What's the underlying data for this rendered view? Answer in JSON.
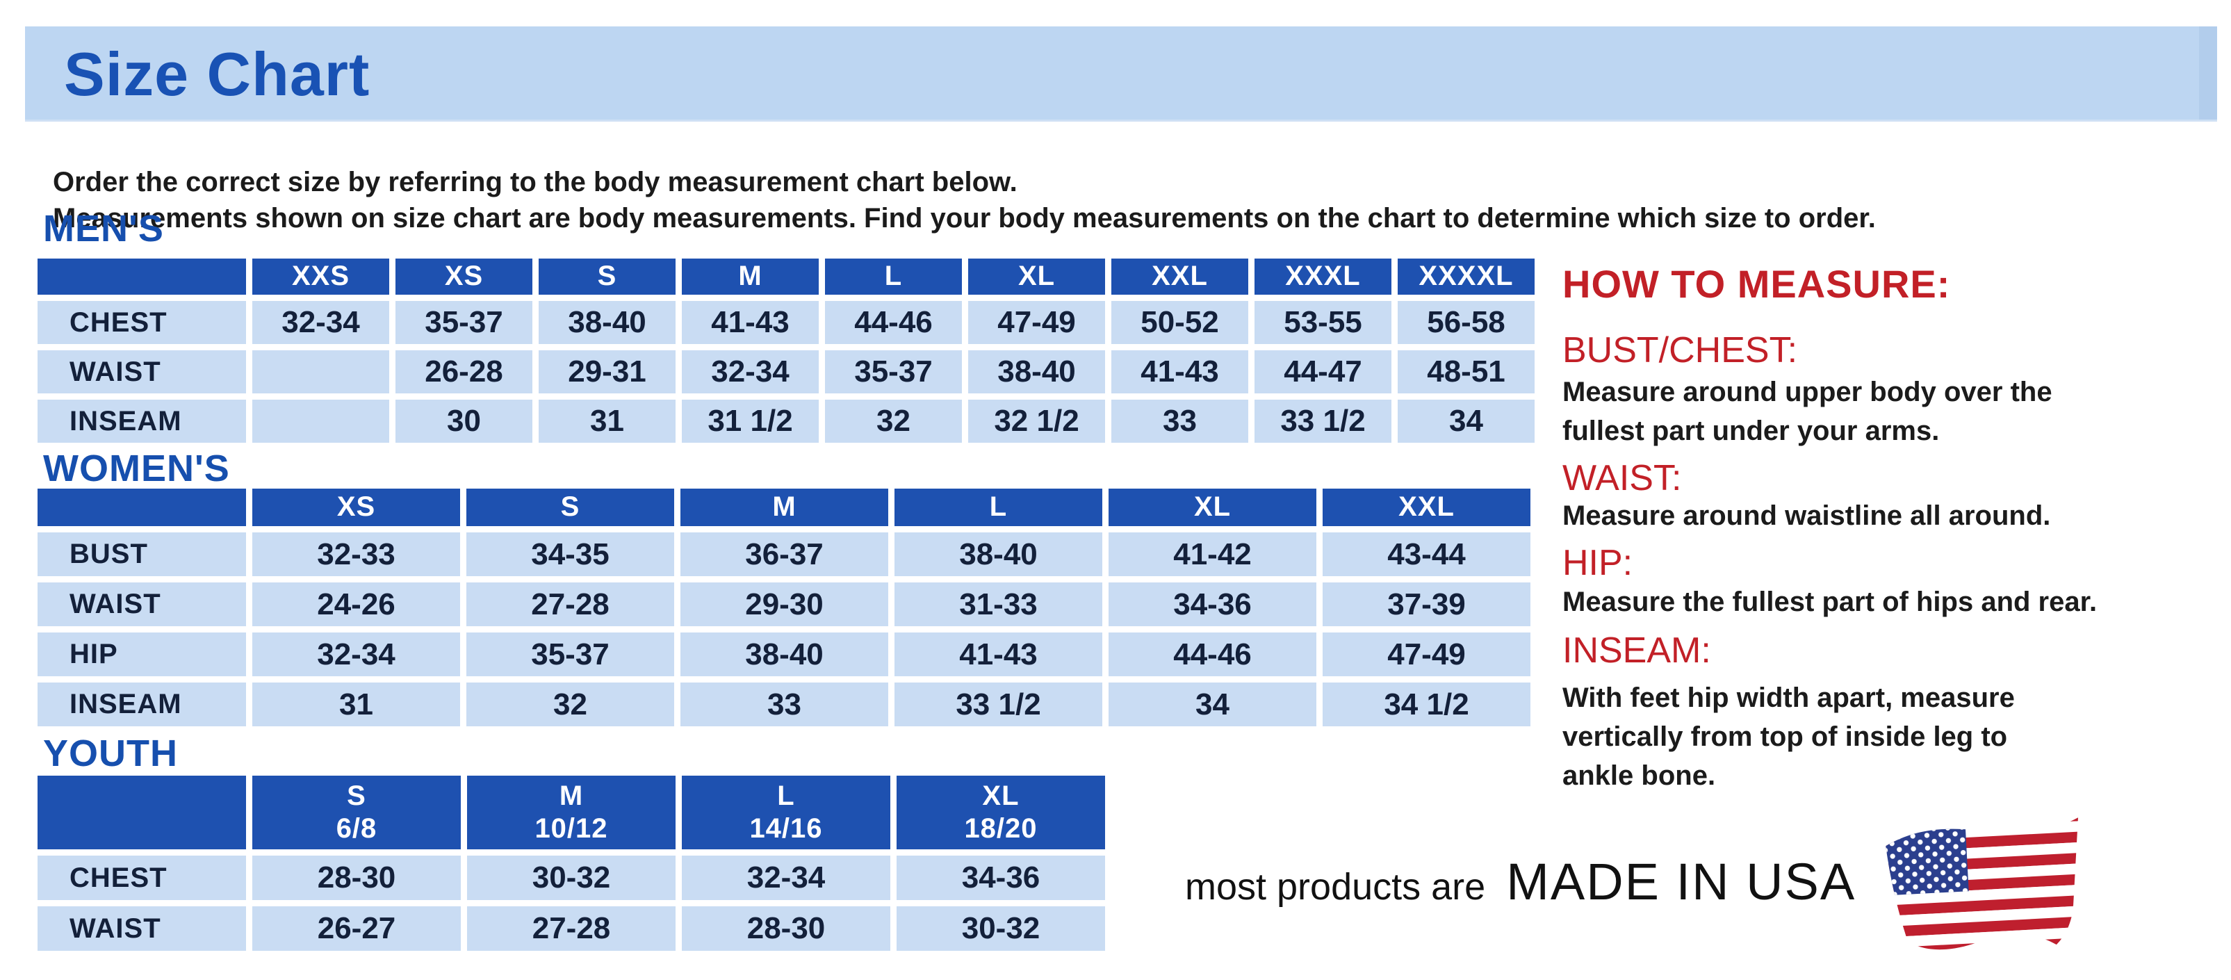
{
  "page": {
    "title": "Size Chart",
    "intro_line1": "Order the correct size by referring to the body measurement chart below.",
    "intro_line2": "Measurements shown on size chart are body measurements.  Find your body measurements on the chart to determine which size to order."
  },
  "tables": {
    "mens": {
      "heading": "MEN'S",
      "columns": [
        "XXS",
        "XS",
        "S",
        "M",
        "L",
        "XL",
        "XXL",
        "XXXL",
        "XXXXL"
      ],
      "rows": [
        {
          "label": "CHEST",
          "values": [
            "32-34",
            "35-37",
            "38-40",
            "41-43",
            "44-46",
            "47-49",
            "50-52",
            "53-55",
            "56-58"
          ]
        },
        {
          "label": "WAIST",
          "values": [
            "",
            "26-28",
            "29-31",
            "32-34",
            "35-37",
            "38-40",
            "41-43",
            "44-47",
            "48-51"
          ]
        },
        {
          "label": "INSEAM",
          "values": [
            "",
            "30",
            "31",
            "31 1/2",
            "32",
            "32 1/2",
            "33",
            "33 1/2",
            "34"
          ]
        }
      ]
    },
    "womens": {
      "heading": "WOMEN'S",
      "columns": [
        "XS",
        "S",
        "M",
        "L",
        "XL",
        "XXL"
      ],
      "rows": [
        {
          "label": "BUST",
          "values": [
            "32-33",
            "34-35",
            "36-37",
            "38-40",
            "41-42",
            "43-44"
          ]
        },
        {
          "label": "WAIST",
          "values": [
            "24-26",
            "27-28",
            "29-30",
            "31-33",
            "34-36",
            "37-39"
          ]
        },
        {
          "label": "HIP",
          "values": [
            "32-34",
            "35-37",
            "38-40",
            "41-43",
            "44-46",
            "47-49"
          ]
        },
        {
          "label": "INSEAM",
          "values": [
            "31",
            "32",
            "33",
            "33 1/2",
            "34",
            "34 1/2"
          ]
        }
      ]
    },
    "youth": {
      "heading": "YOUTH",
      "columns": [
        "S\n6/8",
        "M\n10/12",
        "L\n14/16",
        "XL\n18/20"
      ],
      "rows": [
        {
          "label": "CHEST",
          "values": [
            "28-30",
            "30-32",
            "32-34",
            "34-36"
          ]
        },
        {
          "label": "WAIST",
          "values": [
            "26-27",
            "27-28",
            "28-30",
            "30-32"
          ]
        }
      ]
    }
  },
  "how_to_measure": {
    "heading": "HOW TO MEASURE:",
    "sections": [
      {
        "label": "BUST/CHEST:",
        "text": "Measure around upper body over the\nfullest part under your arms."
      },
      {
        "label": "WAIST:",
        "text": "Measure around waistline all around."
      },
      {
        "label": "HIP:",
        "text": "Measure the fullest part of hips and rear."
      },
      {
        "label": "INSEAM:",
        "text": "With feet hip width apart, measure\nvertically from top of inside leg to\nankle bone."
      }
    ]
  },
  "footer": {
    "prefix": "most products are",
    "made_in": "MADE IN USA",
    "flag_icon": "us-flag-icon"
  },
  "colors": {
    "banner_bg": "#bdd6f2",
    "title_blue": "#1952b4",
    "heading_blue": "#164fae",
    "table_header_blue": "#1e51b0",
    "table_cell_blue": "#c9dcf3",
    "cell_text_navy": "#13203a",
    "accent_red": "#c22027",
    "flag_red": "#bf1f2e",
    "flag_blue": "#2b3f8e"
  }
}
